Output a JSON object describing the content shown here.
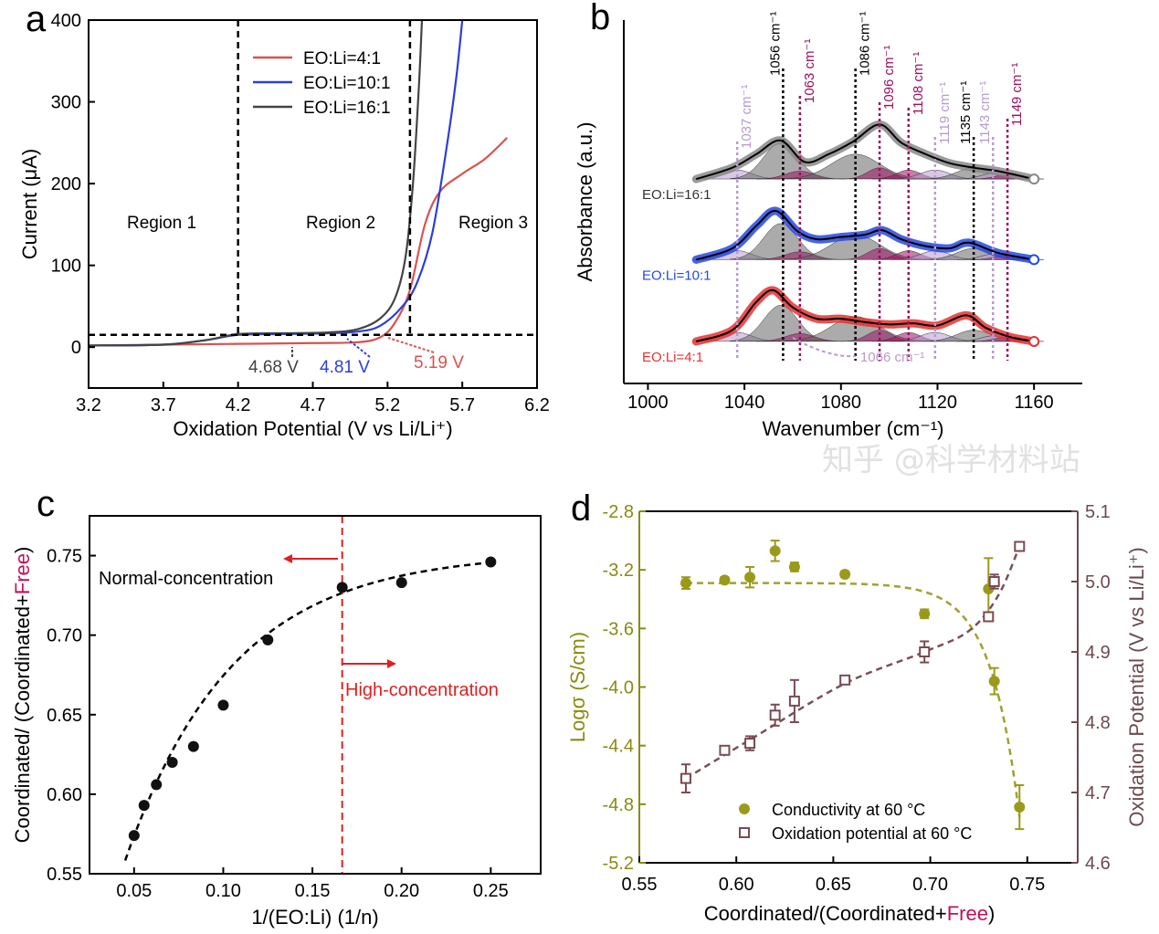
{
  "watermark": "知乎 @科学材料站",
  "chart_data": [
    {
      "panel": "a",
      "type": "line",
      "xlabel": "Oxidation Potential (V vs Li/Li⁺)",
      "ylabel": "Current (μA)",
      "xlim": [
        3.2,
        6.2
      ],
      "ylim": [
        -50,
        400
      ],
      "xticks": [
        3.2,
        3.7,
        4.2,
        4.7,
        5.2,
        5.7,
        6.2
      ],
      "yticks": [
        0,
        100,
        200,
        300,
        400
      ],
      "legend_placement": "top-center",
      "series": [
        {
          "name": "EO:Li=4:1",
          "color": "#d9534f",
          "x": [
            3.2,
            3.7,
            4.2,
            4.7,
            5.0,
            5.15,
            5.25,
            5.35,
            5.45,
            5.55,
            5.7,
            5.85,
            6.0
          ],
          "y": [
            2,
            3,
            4,
            5,
            6,
            12,
            30,
            70,
            150,
            190,
            212,
            230,
            256
          ]
        },
        {
          "name": "EO:Li=10:1",
          "color": "#2b3fd6",
          "x": [
            3.2,
            3.7,
            4.0,
            4.2,
            4.5,
            4.8,
            5.0,
            5.15,
            5.3,
            5.4,
            5.5,
            5.6,
            5.66,
            5.7
          ],
          "y": [
            2,
            3,
            9,
            15,
            16,
            17,
            19,
            26,
            50,
            80,
            140,
            250,
            330,
            400
          ]
        },
        {
          "name": "EO:Li=16:1",
          "color": "#444444",
          "x": [
            3.2,
            3.7,
            4.0,
            4.2,
            4.5,
            4.8,
            5.0,
            5.15,
            5.25,
            5.32,
            5.37,
            5.41,
            5.43
          ],
          "y": [
            2,
            3,
            9,
            16,
            17,
            18,
            22,
            35,
            60,
            110,
            200,
            320,
            400
          ]
        }
      ],
      "hlines": [
        15
      ],
      "vlines": [
        4.2,
        5.35
      ],
      "regions": [
        "Region 1",
        "Region 2",
        "Region 3"
      ],
      "annotations": [
        {
          "text": "4.68 V",
          "color": "#444444",
          "x": 4.68
        },
        {
          "text": "4.81 V",
          "color": "#2b3fd6",
          "x": 4.81
        },
        {
          "text": "5.19 V",
          "color": "#d9534f",
          "x": 5.19
        }
      ]
    },
    {
      "panel": "b",
      "type": "line",
      "xlabel": "Wavenumber (cm⁻¹)",
      "ylabel": "Absorbance (a.u.)",
      "xlim": [
        990,
        1180
      ],
      "xticks": [
        1000,
        1040,
        1080,
        1120,
        1160
      ],
      "series": [
        {
          "name": "EO:Li=4:1",
          "color": "#e83030",
          "offset": 0.37,
          "x": [
            1020,
            1035,
            1045,
            1052,
            1060,
            1070,
            1080,
            1090,
            1100,
            1110,
            1120,
            1132,
            1140,
            1150,
            1160
          ],
          "y": [
            0,
            0.1,
            0.35,
            0.45,
            0.3,
            0.2,
            0.2,
            0.17,
            0.15,
            0.16,
            0.14,
            0.23,
            0.12,
            0.04,
            0
          ]
        },
        {
          "name": "EO:Li=10:1",
          "color": "#2448e0",
          "offset": 1.09,
          "x": [
            1020,
            1035,
            1045,
            1053,
            1062,
            1070,
            1080,
            1090,
            1097,
            1105,
            1115,
            1125,
            1133,
            1145,
            1160
          ],
          "y": [
            0,
            0.1,
            0.3,
            0.43,
            0.25,
            0.18,
            0.2,
            0.22,
            0.26,
            0.18,
            0.12,
            0.1,
            0.15,
            0.06,
            0
          ]
        },
        {
          "name": "EO:Li=16:1",
          "color": "#888888",
          "offset": 1.8,
          "x": [
            1020,
            1035,
            1045,
            1055,
            1065,
            1075,
            1085,
            1096,
            1105,
            1115,
            1125,
            1135,
            1145,
            1160
          ],
          "y": [
            0,
            0.1,
            0.22,
            0.34,
            0.15,
            0.22,
            0.33,
            0.48,
            0.32,
            0.22,
            0.14,
            0.1,
            0.07,
            0
          ]
        }
      ],
      "peaks": [
        {
          "label": "1037 cm⁻¹",
          "x": 1037,
          "color": "#b89ad0"
        },
        {
          "label": "1056 cm⁻¹",
          "x": 1056,
          "color": "#000000"
        },
        {
          "label": "1063 cm⁻¹",
          "x": 1063,
          "color": "#9a1060"
        },
        {
          "label": "1086 cm⁻¹",
          "x": 1086,
          "color": "#000000"
        },
        {
          "label": "1096 cm⁻¹",
          "x": 1096,
          "color": "#9a1060"
        },
        {
          "label": "1108 cm⁻¹",
          "x": 1108,
          "color": "#9a1060"
        },
        {
          "label": "1119 cm⁻¹",
          "x": 1119,
          "color": "#b89ad0"
        },
        {
          "label": "1135 cm⁻¹",
          "x": 1135,
          "color": "#000000"
        },
        {
          "label": "1143 cm⁻¹",
          "x": 1143,
          "color": "#b89ad0"
        },
        {
          "label": "1149 cm⁻¹",
          "x": 1149,
          "color": "#9a1060"
        }
      ],
      "annotation": {
        "text": "1066 cm⁻¹",
        "color": "#b89ad0"
      }
    },
    {
      "panel": "c",
      "type": "scatter",
      "xlabel": "1/(EO:Li) (1/n)",
      "ylabel_parts": [
        "Coordinated/ (Coordinated+",
        "Free",
        ")"
      ],
      "xlim": [
        0.025,
        0.278
      ],
      "ylim": [
        0.55,
        0.775
      ],
      "xticks": [
        "0.05",
        "0.10",
        "0.15",
        "0.20",
        "0.25"
      ],
      "yticks": [
        "0.55",
        "0.60",
        "0.65",
        "0.70",
        "0.75"
      ],
      "x": [
        0.05,
        0.0556,
        0.0625,
        0.0714,
        0.0833,
        0.1,
        0.125,
        0.1667,
        0.2,
        0.25
      ],
      "y": [
        0.574,
        0.593,
        0.606,
        0.62,
        0.63,
        0.656,
        0.697,
        0.73,
        0.733,
        0.746
      ],
      "vline": 0.1667,
      "annotations": [
        {
          "text": "Normal-concentration",
          "color": "#000000"
        },
        {
          "text": "High-concentration",
          "color": "#e02020"
        }
      ]
    },
    {
      "panel": "d",
      "type": "scatter",
      "xlabel_parts": [
        "Coordinated/(Coordinated+",
        "Free",
        ")"
      ],
      "ylabel_left": "Logσ (S/cm)",
      "ylabel_right": "Oxidation Potential (V vs Li/Li⁺)",
      "xlim": [
        0.55,
        0.776
      ],
      "ylim_left": [
        -5.2,
        -2.8
      ],
      "ylim_right": [
        4.6,
        5.1
      ],
      "xticks": [
        "0.55",
        "0.60",
        "0.65",
        "0.70",
        "0.75"
      ],
      "yticks_left": [
        "-2.8",
        "-3.2",
        "-3.6",
        "-4.0",
        "-4.4",
        "-4.8",
        "-5.2"
      ],
      "yticks_right": [
        "4.6",
        "4.7",
        "4.8",
        "4.9",
        "5.0",
        "5.1"
      ],
      "legend_placement": "bottom-center",
      "series": [
        {
          "name": "Conductivity at 60 °C",
          "color": "#9a9a1a",
          "axis": "left",
          "x": [
            0.574,
            0.594,
            0.607,
            0.62,
            0.63,
            0.656,
            0.697,
            0.73,
            0.733,
            0.746
          ],
          "y": [
            -3.29,
            -3.27,
            -3.25,
            -3.07,
            -3.18,
            -3.23,
            -3.5,
            -3.33,
            -3.96,
            -4.82
          ],
          "err": [
            0.04,
            0.02,
            0.07,
            0.07,
            0.03,
            0.02,
            0.03,
            0.21,
            0.09,
            0.15
          ]
        },
        {
          "name": "Oxidation potential at 60 °C",
          "color": "#7a4a52",
          "axis": "right",
          "x": [
            0.574,
            0.594,
            0.607,
            0.62,
            0.63,
            0.656,
            0.697,
            0.73,
            0.733,
            0.746
          ],
          "y": [
            4.72,
            4.76,
            4.77,
            4.81,
            4.83,
            4.86,
            4.9,
            4.95,
            5.0,
            5.05
          ],
          "err": [
            0.02,
            0.005,
            0.01,
            0.015,
            0.03,
            0.005,
            0.015,
            0.005,
            0.01,
            0.005
          ]
        }
      ]
    }
  ],
  "panel_labels": [
    "a",
    "b",
    "c",
    "d"
  ]
}
